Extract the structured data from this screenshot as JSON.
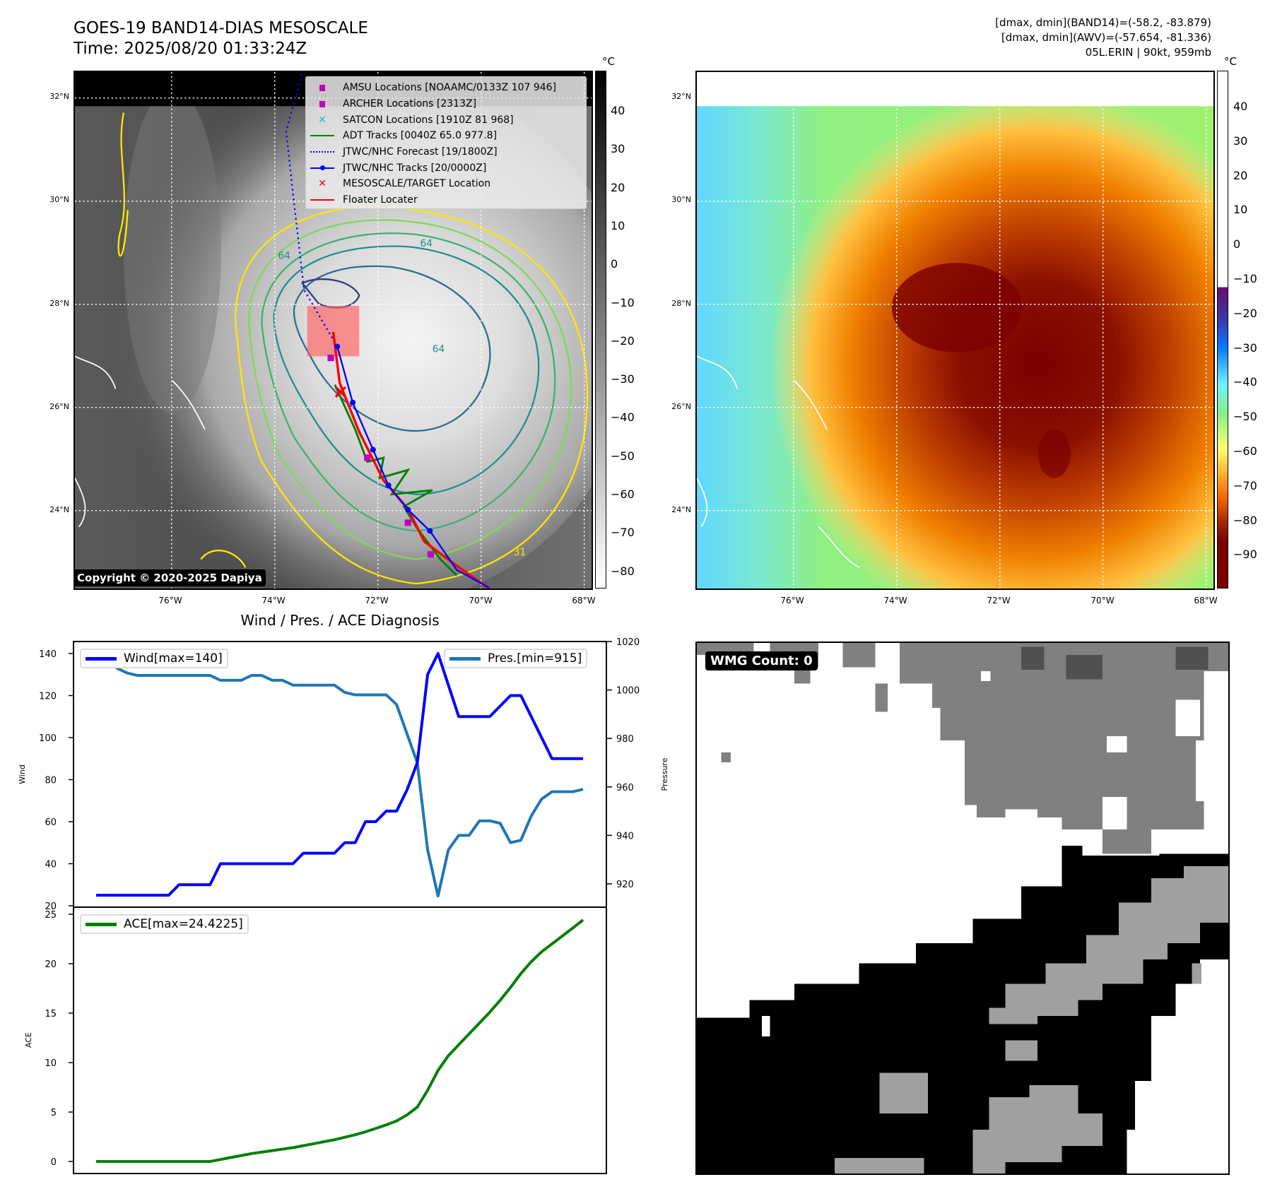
{
  "header": {
    "title": "GOES-19 BAND14-DIAS MESOSCALE",
    "time": "Time: 2025/08/20 01:33:24Z",
    "stats_band14": "[dmax, dmin](BAND14)=(-58.2, -83.879)",
    "stats_awv": "[dmax, dmin](AWV)=(-57.654, -81.336)",
    "storm": "05L.ERIN | 90kt, 959mb"
  },
  "map": {
    "lat_ticks": [
      "32°N",
      "30°N",
      "28°N",
      "26°N",
      "24°N"
    ],
    "lon_ticks": [
      "76°W",
      "74°W",
      "72°W",
      "70°W",
      "68°W"
    ],
    "unit": "°C",
    "copyright": "Copyright © 2020-2025 Dapiya",
    "contour_labels": [
      "64",
      "64",
      "64",
      "31"
    ]
  },
  "legend": [
    {
      "label": "AMSU Locations [NOAAMC/0133Z 107 946]",
      "color": "#c000c0",
      "marker": "square"
    },
    {
      "label": "ARCHER Locations [2313Z]",
      "color": "#c000c0",
      "marker": "square"
    },
    {
      "label": "SATCON Locations [1910Z 81 968]",
      "color": "#20c0c0",
      "marker": "x"
    },
    {
      "label": "ADT Tracks [0040Z 65.0 977.8]",
      "color": "#008000",
      "marker": "line"
    },
    {
      "label": "JTWC/NHC Forecast [19/1800Z]",
      "color": "#0000ff",
      "marker": "dotted"
    },
    {
      "label": "JTWC/NHC Tracks [20/0000Z]",
      "color": "#0000ff",
      "marker": "line-dot"
    },
    {
      "label": "MESOSCALE/TARGET Location",
      "color": "#ff0000",
      "marker": "x"
    },
    {
      "label": "Floater Locater",
      "color": "#ff0000",
      "marker": "line"
    }
  ],
  "colorbar_ir": [
    "40",
    "30",
    "20",
    "10",
    "0",
    "−10",
    "−20",
    "−30",
    "−40",
    "−50",
    "−60",
    "−70",
    "−80"
  ],
  "colorbar_awv": [
    "40",
    "30",
    "20",
    "10",
    "0",
    "−10",
    "−20",
    "−30",
    "−40",
    "−50",
    "−60",
    "−70",
    "−80",
    "−90"
  ],
  "wmg": {
    "label": "WMG Count: 0"
  },
  "chart_data": [
    {
      "type": "line",
      "title": "Wind / Pres. / ACE Diagnosis",
      "ylabel": "Wind",
      "y2label": "Pressure",
      "ylim": [
        20,
        140
      ],
      "y2lim": [
        915,
        1020
      ],
      "yticks": [
        20,
        40,
        60,
        80,
        100,
        120,
        140
      ],
      "y2ticks": [
        920,
        940,
        960,
        980,
        1000,
        1020
      ],
      "series": [
        {
          "name": "Wind[max=140]",
          "color": "#0000ff",
          "values": [
            25,
            25,
            25,
            25,
            25,
            25,
            25,
            25,
            30,
            30,
            30,
            30,
            40,
            40,
            40,
            40,
            40,
            40,
            40,
            40,
            45,
            45,
            45,
            45,
            50,
            50,
            60,
            60,
            65,
            65,
            75,
            88,
            130,
            140,
            125,
            110,
            110,
            110,
            110,
            115,
            120,
            120,
            110,
            100,
            90,
            90,
            90,
            90
          ]
        },
        {
          "name": "Pres.[min=915]",
          "color": "#1f77b4",
          "axis": "right",
          "values": [
            1015,
            1015,
            1009,
            1007,
            1006,
            1006,
            1006,
            1006,
            1006,
            1006,
            1006,
            1006,
            1004,
            1004,
            1004,
            1006,
            1006,
            1004,
            1004,
            1002,
            1002,
            1002,
            1002,
            1002,
            999,
            998,
            998,
            998,
            998,
            994,
            982,
            970,
            934,
            915,
            934,
            940,
            940,
            946,
            946,
            945,
            937,
            938,
            948,
            955,
            958,
            958,
            958,
            959
          ]
        }
      ]
    },
    {
      "type": "line",
      "ylabel": "ACE",
      "ylim": [
        0,
        25
      ],
      "yticks": [
        0,
        5,
        10,
        15,
        20,
        25
      ],
      "series": [
        {
          "name": "ACE[max=24.4225]",
          "color": "#008000",
          "values": [
            0,
            0,
            0,
            0,
            0,
            0,
            0,
            0,
            0,
            0,
            0,
            0,
            0.2,
            0.4,
            0.6,
            0.8,
            0.95,
            1.1,
            1.25,
            1.4,
            1.6,
            1.8,
            2.0,
            2.2,
            2.45,
            2.7,
            3.0,
            3.35,
            3.7,
            4.1,
            4.7,
            5.5,
            7.2,
            9.2,
            10.7,
            11.8,
            12.9,
            14.0,
            15.1,
            16.3,
            17.6,
            19.0,
            20.2,
            21.2,
            22.0,
            22.8,
            23.6,
            24.42
          ]
        }
      ]
    }
  ]
}
